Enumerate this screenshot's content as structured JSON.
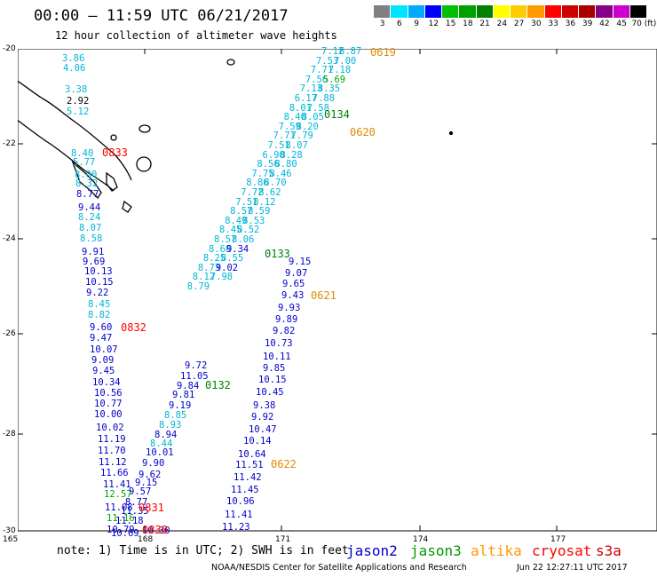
{
  "header": {
    "title": "00:00 – 11:59 UTC 06/21/2017",
    "subtitle": "12 hour collection of altimeter wave heights"
  },
  "colorbar": {
    "labels": [
      "3",
      "6",
      "9",
      "12",
      "15",
      "18",
      "21",
      "24",
      "27",
      "30",
      "33",
      "36",
      "39",
      "42",
      "45",
      "70 (ft)"
    ],
    "colors": [
      "#808080",
      "#00e5ff",
      "#00aaff",
      "#0000ff",
      "#00c000",
      "#00a000",
      "#008000",
      "#ffff00",
      "#ffcc00",
      "#ff9900",
      "#ff0000",
      "#cc0000",
      "#aa0000",
      "#880088",
      "#cc00cc",
      "#000000"
    ]
  },
  "map": {
    "lat_labels": [
      "-20",
      "-22",
      "-24",
      "-26",
      "-28",
      "-30"
    ],
    "lon_labels": [
      "165",
      "168",
      "171",
      "174",
      "177"
    ],
    "tracks": {
      "t_0619": {
        "label": "0619",
        "color": "#e08a00",
        "values": [
          "7.12",
          "6.87",
          "7.53",
          "7.00",
          "7.71",
          "7.18",
          "7.56",
          "5.69",
          "7.13",
          "8.35",
          "6.17",
          "7.88",
          "8.01",
          "7.58",
          "8.40",
          "8.05",
          "7.59",
          "8.20",
          "7.71",
          "7.79",
          "7.51",
          "8.07",
          "6.90",
          "8.28",
          "8.56",
          "8.80",
          "7.75",
          "8.46",
          "8.86",
          "8.70",
          "7.72",
          "8.62",
          "7.51",
          "8.12",
          "8.57",
          "8.59",
          "8.49",
          "8.53",
          "8.45",
          "8.52",
          "8.57",
          "8.06",
          "8.68",
          "9.34",
          "8.25",
          "8.55",
          "8.73",
          "9.02",
          "8.12",
          "7.98",
          "8.79"
        ],
        "colors": [
          "c",
          "c",
          "c",
          "c",
          "c",
          "c",
          "c",
          "g",
          "c",
          "c",
          "c",
          "c",
          "c",
          "c",
          "c",
          "c",
          "c",
          "c",
          "c",
          "c",
          "c",
          "c",
          "c",
          "c",
          "c",
          "c",
          "c",
          "c",
          "c",
          "c",
          "c",
          "c",
          "c",
          "c",
          "c",
          "c",
          "c",
          "c",
          "c",
          "c",
          "c",
          "c",
          "c",
          "b",
          "c",
          "c",
          "c",
          "b",
          "c",
          "c",
          "c"
        ]
      },
      "t_0134": {
        "label": "0134",
        "color": "#008000"
      },
      "t_0620": {
        "label": "0620",
        "color": "#e08a00"
      },
      "t_0133": {
        "label": "0133",
        "color": "#008000"
      },
      "t_0621": {
        "label": "0621",
        "color": "#e08a00"
      },
      "t_0132": {
        "label": "0132",
        "color": "#008000"
      },
      "t_0622": {
        "label": "0622",
        "color": "#e08a00"
      },
      "t_0833": {
        "label": "0833",
        "color": "#ff0000"
      },
      "t_0832": {
        "label": "0832",
        "color": "#ff0000"
      },
      "t_0831": {
        "label": "0831",
        "color": "#ff0000"
      },
      "t_0830": {
        "label": "0830",
        "color": "#ff0000"
      }
    },
    "col_a": {
      "values": [
        "3.86",
        "4.06",
        "3.38",
        "2.92",
        "5.12",
        "8.40",
        "5.77",
        "8.00",
        "8.32",
        "8.77",
        "9.44",
        "8.24",
        "8.07",
        "8.58",
        "9.91",
        "9.69",
        "10.13",
        "10.15",
        "9.22",
        "8.45",
        "8.82",
        "9.60",
        "9.47",
        "10.07",
        "9.09",
        "9.45",
        "10.34",
        "10.56",
        "10.77",
        "10.00",
        "10.02",
        "11.19",
        "11.70",
        "11.12",
        "11.66",
        "11.41",
        "12.57",
        "11.08",
        "11.16",
        "10.79"
      ],
      "colors": [
        "c",
        "c",
        "c",
        "k",
        "c",
        "c",
        "c",
        "c",
        "c",
        "b",
        "b",
        "c",
        "c",
        "c",
        "b",
        "b",
        "b",
        "b",
        "b",
        "c",
        "c",
        "b",
        "b",
        "b",
        "b",
        "b",
        "b",
        "b",
        "b",
        "b",
        "b",
        "b",
        "b",
        "b",
        "b",
        "b",
        "g",
        "b",
        "g",
        "b"
      ]
    },
    "col_b": {
      "values": [
        "9.15",
        "9.07",
        "9.65",
        "9.43",
        "9.93",
        "9.89",
        "9.82",
        "10.73",
        "10.11",
        "9.85",
        "10.15",
        "10.45",
        "9.38",
        "9.92",
        "10.47",
        "10.14",
        "10.64",
        "11.51",
        "11.42",
        "11.45",
        "10.96",
        "11.41",
        "11.23"
      ]
    },
    "col_c": {
      "values": [
        "9.72",
        "11.05",
        "9.84",
        "9.81",
        "9.19",
        "8.85",
        "8.93",
        "8.94",
        "8.44",
        "10.01",
        "9.90",
        "9.62",
        "9.15",
        "9.57",
        "8.77",
        "11.35",
        "11.18",
        "10.30",
        "10.69"
      ],
      "colors": [
        "b",
        "b",
        "b",
        "b",
        "b",
        "c",
        "c",
        "b",
        "c",
        "b",
        "b",
        "b",
        "b",
        "b",
        "b",
        "b",
        "b",
        "b",
        "b"
      ]
    }
  },
  "footer": {
    "note": "note: 1) Time is in UTC; 2) SWH is in feet",
    "satellites": [
      {
        "name": "jason2",
        "color": "#0000cc"
      },
      {
        "name": "jason3",
        "color": "#009900"
      },
      {
        "name": "altika",
        "color": "#ff9900"
      },
      {
        "name": "cryosat",
        "color": "#ff0000"
      },
      {
        "name": "s3a",
        "color": "#cc0000"
      }
    ],
    "credit": "NOAA/NESDIS Center for Satellite Applications and Research",
    "timestamp": "Jun 22 12:27:11 UTC 2017"
  }
}
